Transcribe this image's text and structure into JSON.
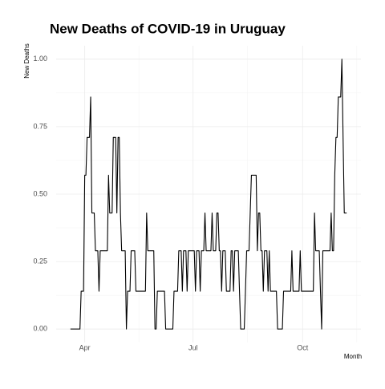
{
  "chart_data": {
    "type": "line",
    "title": "New Deaths of COVID-19 in Uruguay",
    "y_label": "New Deaths",
    "x_label": "Month",
    "color": "#000000",
    "grid": true,
    "x": [
      0,
      1,
      2,
      3,
      4,
      5,
      6,
      7,
      8,
      9,
      10,
      11,
      12,
      13,
      14,
      15,
      16,
      17,
      18,
      19,
      20,
      21,
      22,
      23,
      24,
      25,
      26,
      27,
      28,
      29,
      30,
      31,
      32,
      33,
      34,
      35,
      36,
      37,
      38,
      39,
      40,
      41,
      42,
      43,
      44,
      45,
      46,
      47,
      48,
      49,
      50,
      51,
      52,
      53,
      54,
      55,
      56,
      57,
      58,
      59,
      60,
      61,
      62,
      63,
      64,
      65,
      66,
      67,
      68,
      69,
      70,
      71,
      72,
      73,
      74,
      75,
      76,
      77,
      78,
      79,
      80,
      81,
      82,
      83,
      84,
      85,
      86,
      87,
      88,
      89,
      90,
      91,
      92,
      93,
      94,
      95,
      96,
      97,
      98,
      99,
      100,
      101,
      102,
      103,
      104,
      105,
      106,
      107,
      108,
      109,
      110,
      111,
      112,
      113,
      114,
      115,
      116,
      117,
      118,
      119,
      120,
      121,
      122,
      123,
      124,
      125,
      126,
      127,
      128,
      129,
      130,
      131,
      132,
      133,
      134,
      135,
      136,
      137,
      138,
      139,
      140,
      141,
      142,
      143,
      144,
      145,
      146,
      147,
      148,
      149,
      150,
      151,
      152,
      153,
      154,
      155,
      156,
      157,
      158,
      159,
      160,
      161,
      162,
      163,
      164,
      165,
      166,
      167,
      168,
      169,
      170,
      171,
      172,
      173,
      174,
      175,
      176,
      177,
      178,
      179,
      180,
      181,
      182,
      183,
      184,
      185,
      186,
      187,
      188,
      189,
      190,
      191,
      192,
      193,
      194,
      195,
      196,
      197,
      198,
      199,
      200,
      201,
      202,
      203,
      204,
      205,
      206,
      207,
      208,
      209,
      210,
      211,
      212,
      213,
      214,
      215,
      216,
      217,
      218,
      219,
      220,
      221,
      222,
      223,
      224,
      225,
      226,
      227,
      228,
      229,
      230,
      231,
      232
    ],
    "values": [
      0,
      0,
      0,
      0,
      0,
      0,
      0,
      0,
      0,
      0.14,
      0.14,
      0.14,
      0.57,
      0.57,
      0.71,
      0.71,
      0.71,
      0.86,
      0.43,
      0.43,
      0.43,
      0.29,
      0.29,
      0.29,
      0.14,
      0.29,
      0.29,
      0.29,
      0.29,
      0.29,
      0.29,
      0.29,
      0.57,
      0.43,
      0.43,
      0.43,
      0.71,
      0.71,
      0.71,
      0.43,
      0.71,
      0.71,
      0.43,
      0.29,
      0.29,
      0.29,
      0.29,
      0,
      0.14,
      0.14,
      0.14,
      0.29,
      0.29,
      0.29,
      0.29,
      0.14,
      0.14,
      0.14,
      0.14,
      0.14,
      0.14,
      0.14,
      0.14,
      0.14,
      0.43,
      0.29,
      0.29,
      0.29,
      0.29,
      0.29,
      0.29,
      0,
      0,
      0.14,
      0.14,
      0.14,
      0.14,
      0.14,
      0.14,
      0.14,
      0,
      0,
      0,
      0,
      0,
      0,
      0,
      0.14,
      0.14,
      0.14,
      0.14,
      0.29,
      0.29,
      0.29,
      0.14,
      0.29,
      0.29,
      0.29,
      0.14,
      0.29,
      0.29,
      0.29,
      0.29,
      0.29,
      0.29,
      0.14,
      0.29,
      0.29,
      0.29,
      0.14,
      0.29,
      0.29,
      0.29,
      0.43,
      0.29,
      0.29,
      0.29,
      0.29,
      0.29,
      0.43,
      0.29,
      0.29,
      0.29,
      0.43,
      0.43,
      0.29,
      0.29,
      0.14,
      0.29,
      0.29,
      0.29,
      0.14,
      0.14,
      0.14,
      0.14,
      0.29,
      0.29,
      0.14,
      0.29,
      0.29,
      0.29,
      0.29,
      0.14,
      0,
      0,
      0,
      0,
      0.14,
      0.29,
      0.29,
      0.29,
      0.43,
      0.57,
      0.57,
      0.57,
      0.57,
      0.57,
      0.29,
      0.43,
      0.43,
      0.29,
      0.29,
      0.14,
      0.29,
      0.29,
      0.29,
      0.14,
      0.29,
      0.14,
      0.14,
      0.14,
      0.14,
      0.14,
      0.14,
      0,
      0,
      0,
      0,
      0,
      0.14,
      0.14,
      0.14,
      0.14,
      0.14,
      0.14,
      0.14,
      0.29,
      0.14,
      0.14,
      0.14,
      0.14,
      0.14,
      0.14,
      0.29,
      0.14,
      0.14,
      0.14,
      0.14,
      0.14,
      0.14,
      0.14,
      0.14,
      0.14,
      0.14,
      0.14,
      0.43,
      0.29,
      0.29,
      0.29,
      0.29,
      0.14,
      0,
      0.29,
      0.29,
      0.29,
      0.29,
      0.29,
      0.29,
      0.29,
      0.43,
      0.29,
      0.29,
      0.57,
      0.71,
      0.71,
      0.86,
      0.86,
      0.86,
      1,
      0.71,
      0.43,
      0.43,
      0.43
    ],
    "xlim": [
      -12,
      244
    ],
    "xticks": [
      {
        "value": 12,
        "label": "Apr"
      },
      {
        "value": 103,
        "label": "Jul"
      },
      {
        "value": 195,
        "label": "Oct"
      }
    ],
    "ylim": [
      -0.05,
      1.05
    ],
    "yticks": [
      {
        "value": 0,
        "label": "0.00"
      },
      {
        "value": 0.25,
        "label": "0.25"
      },
      {
        "value": 0.5,
        "label": "0.50"
      },
      {
        "value": 0.75,
        "label": "0.75"
      },
      {
        "value": 1,
        "label": "1.00"
      }
    ]
  }
}
